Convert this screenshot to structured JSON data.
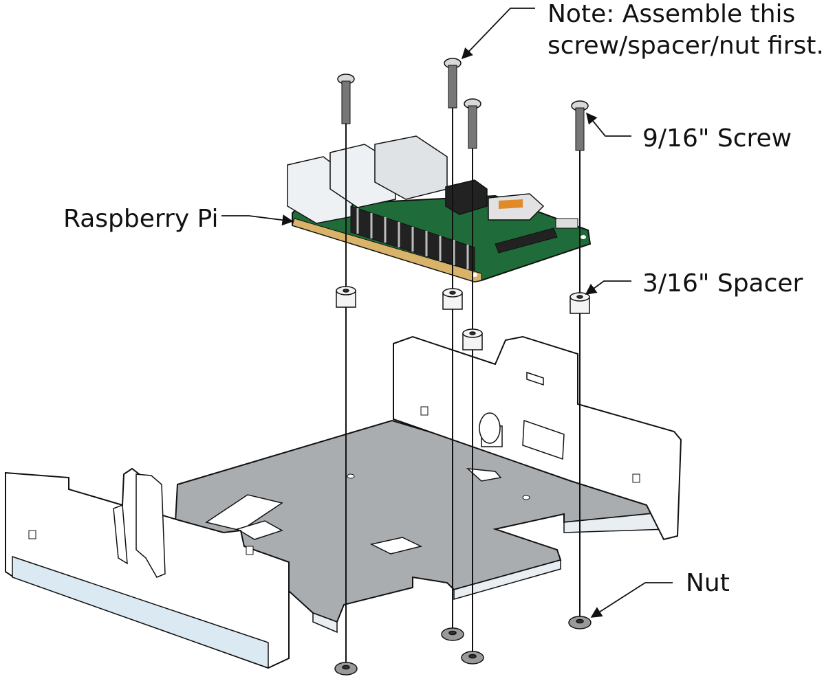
{
  "labels": {
    "note_line1": "Note:  Assemble this",
    "note_line2": "screw/spacer/nut first.",
    "screw": "9/16\" Screw",
    "raspberry_pi": "Raspberry Pi",
    "spacer": "3/16\" Spacer",
    "nut": "Nut"
  },
  "colors": {
    "base_plate": "#a9adb0",
    "acrylic": "#ffffff",
    "acrylic_edge": "#dbe9f3",
    "pcb": "#1f6b3a",
    "outline": "#111111"
  }
}
